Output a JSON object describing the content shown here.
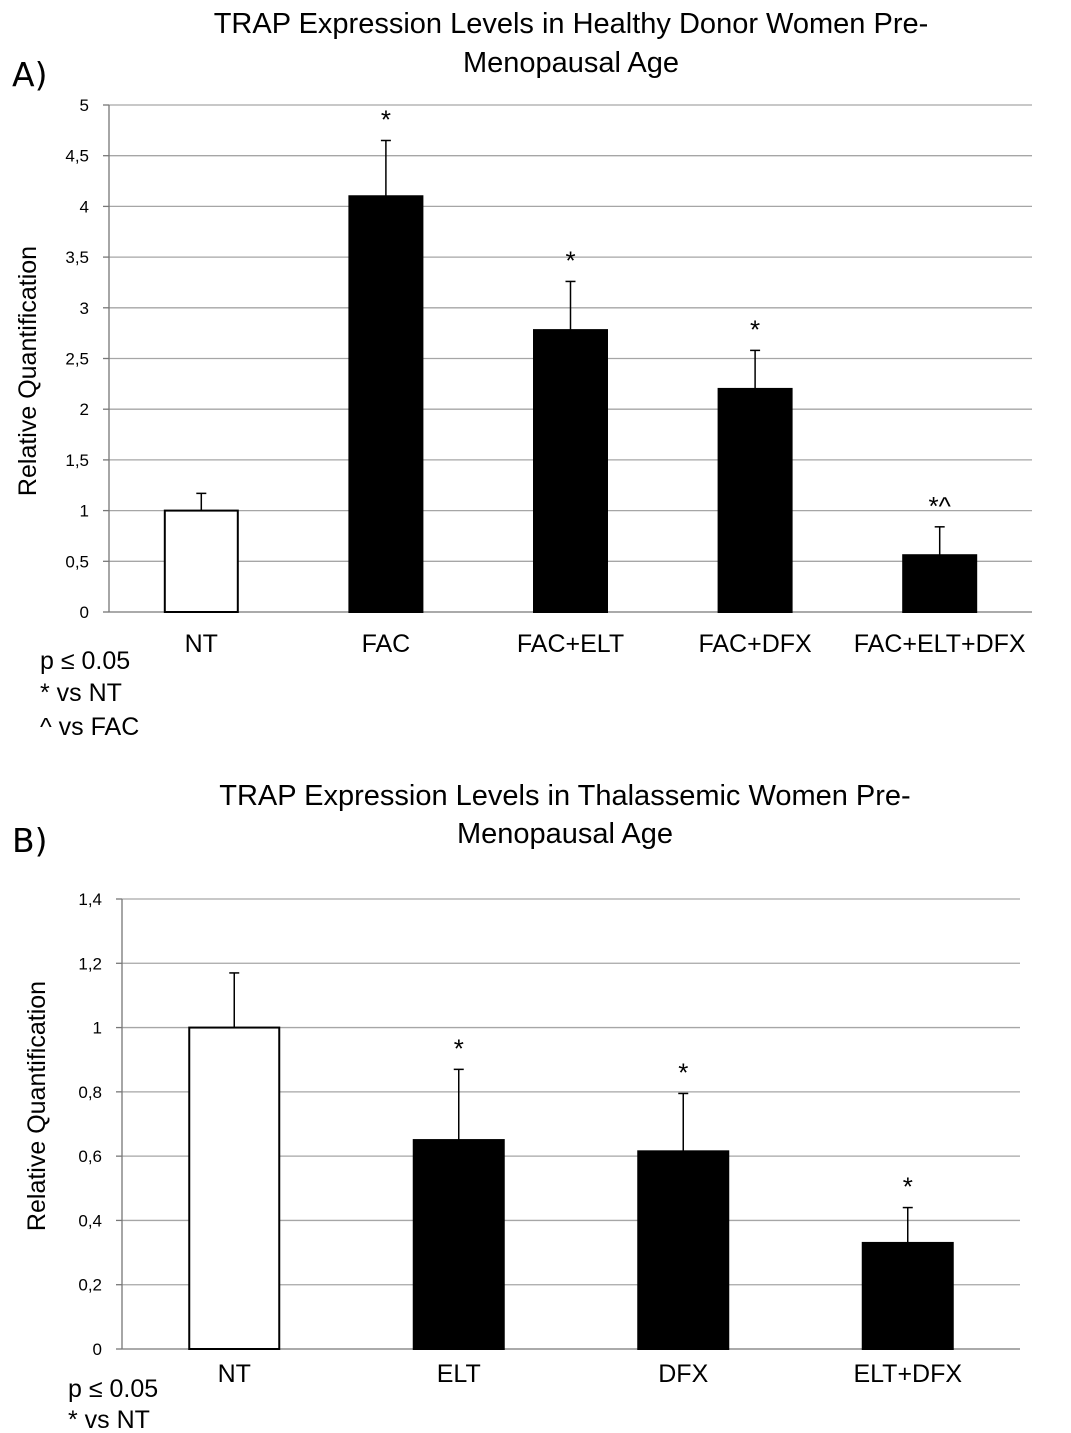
{
  "figure": {
    "panels": [
      {
        "panel_label": "A)",
        "title_lines": [
          "TRAP Expression Levels in Healthy Donor Women Pre-",
          "Menopausal Age"
        ],
        "notes": [
          "p ≤ 0.05",
          "* vs NT",
          "^ vs FAC"
        ]
      },
      {
        "panel_label": "B)",
        "title_lines": [
          "TRAP Expression Levels in Thalassemic Women Pre-",
          "Menopausal Age"
        ],
        "notes": [
          "p ≤ 0.05",
          "* vs NT"
        ]
      }
    ]
  },
  "chart_data": [
    {
      "type": "bar",
      "title": "TRAP Expression Levels in Healthy Donor Women Pre-Menopausal Age",
      "xlabel": "",
      "ylabel": "Relative Quantification",
      "ylim": [
        0,
        5
      ],
      "yticks": [
        "0",
        "0,5",
        "1",
        "1,5",
        "2",
        "2,5",
        "3",
        "3,5",
        "4",
        "4,5",
        "5"
      ],
      "grid": true,
      "categories": [
        "NT",
        "FAC",
        "FAC+ELT",
        "FAC+DFX",
        "FAC+ELT+DFX"
      ],
      "values": [
        1.0,
        4.1,
        2.78,
        2.2,
        0.56
      ],
      "errors": [
        0.17,
        0.55,
        0.48,
        0.38,
        0.28
      ],
      "fills": [
        "#ffffff",
        "#000000",
        "#000000",
        "#000000",
        "#000000"
      ],
      "significance": [
        "",
        "*",
        "*",
        "*",
        "*^"
      ]
    },
    {
      "type": "bar",
      "title": "TRAP Expression Levels in Thalassemic Women Pre-Menopausal Age",
      "xlabel": "",
      "ylabel": "Relative Quantification",
      "ylim": [
        0,
        1.4
      ],
      "yticks": [
        "0",
        "0,2",
        "0,4",
        "0,6",
        "0,8",
        "1",
        "1,2",
        "1,4"
      ],
      "grid": true,
      "categories": [
        "NT",
        "ELT",
        "DFX",
        "ELT+DFX"
      ],
      "values": [
        1.0,
        0.65,
        0.615,
        0.33
      ],
      "errors": [
        0.17,
        0.22,
        0.18,
        0.11
      ],
      "fills": [
        "#ffffff",
        "#000000",
        "#000000",
        "#000000"
      ],
      "significance": [
        "",
        "*",
        "*",
        "*"
      ]
    }
  ]
}
